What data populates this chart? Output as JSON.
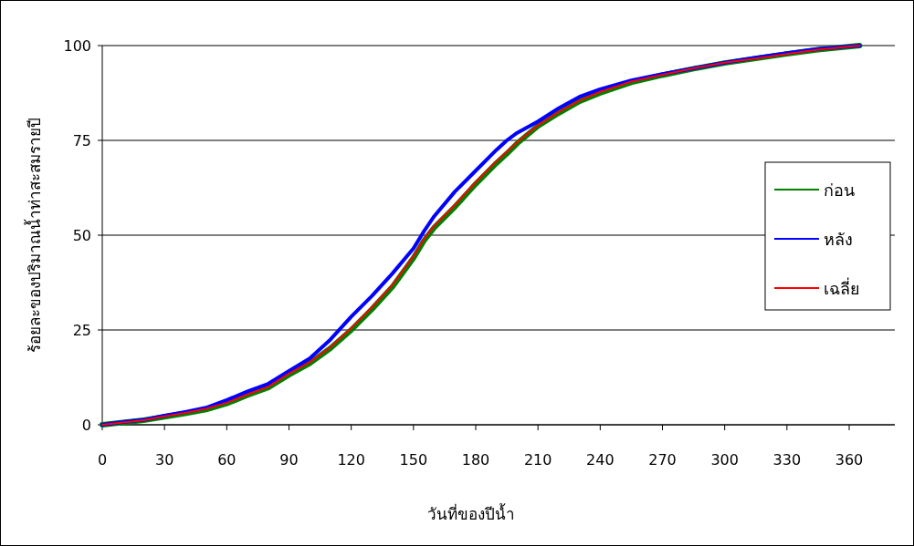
{
  "chart_data": {
    "type": "line",
    "xlabel": "วันที่ของปีน้ำ",
    "ylabel": "ร้อยละของปริมาณน้ำท่าสะสมรายปี",
    "x": [
      0,
      10,
      20,
      30,
      40,
      50,
      60,
      70,
      80,
      90,
      100,
      110,
      115,
      120,
      130,
      140,
      150,
      155,
      160,
      170,
      180,
      190,
      195,
      200,
      210,
      220,
      230,
      240,
      255,
      270,
      285,
      300,
      315,
      330,
      345,
      365
    ],
    "series": [
      {
        "name": "ก่อน",
        "color": "#008000",
        "values": [
          0,
          0.6,
          1.2,
          2.1,
          3.0,
          4.0,
          5.6,
          7.8,
          9.8,
          13.2,
          16.2,
          20.2,
          22.6,
          25.0,
          30.5,
          36.5,
          44,
          48.5,
          52,
          57.5,
          63.5,
          69,
          71.5,
          74.2,
          78.8,
          82.2,
          85.3,
          87.5,
          90.3,
          92.2,
          93.9,
          95.4,
          96.6,
          97.8,
          98.9,
          100
        ]
      },
      {
        "name": "หลัง",
        "color": "#0000ff",
        "values": [
          0,
          0.7,
          1.3,
          2.4,
          3.4,
          4.5,
          6.5,
          8.8,
          10.8,
          14.2,
          17.5,
          22.5,
          25.5,
          28.5,
          34,
          40,
          46.5,
          51,
          55,
          61.5,
          67,
          72.5,
          75,
          77,
          80,
          83.5,
          86.5,
          88.5,
          90.8,
          92.5,
          94,
          95.5,
          96.8,
          98.0,
          99.1,
          100
        ]
      },
      {
        "name": "เฉลี่ย",
        "color": "#ff0000",
        "values": [
          0,
          0.6,
          1.2,
          2.2,
          3.1,
          4.2,
          5.8,
          8.0,
          10.0,
          13.5,
          16.5,
          20.5,
          23.0,
          25.5,
          31,
          37,
          44.5,
          49,
          52.5,
          58,
          64,
          69.5,
          72,
          74.5,
          79,
          82.5,
          85.5,
          87.8,
          90.5,
          92.3,
          94,
          95.5,
          96.6,
          97.8,
          98.9,
          100
        ]
      }
    ],
    "xlim": [
      0,
      382
    ],
    "xticks": [
      0,
      30,
      60,
      90,
      120,
      150,
      180,
      210,
      240,
      270,
      300,
      330,
      360
    ],
    "ylim": [
      0,
      100
    ],
    "yticks": [
      0,
      25,
      50,
      75,
      100
    ],
    "grid": "y",
    "legend": "right",
    "marker": "none",
    "line_style": "solid"
  }
}
